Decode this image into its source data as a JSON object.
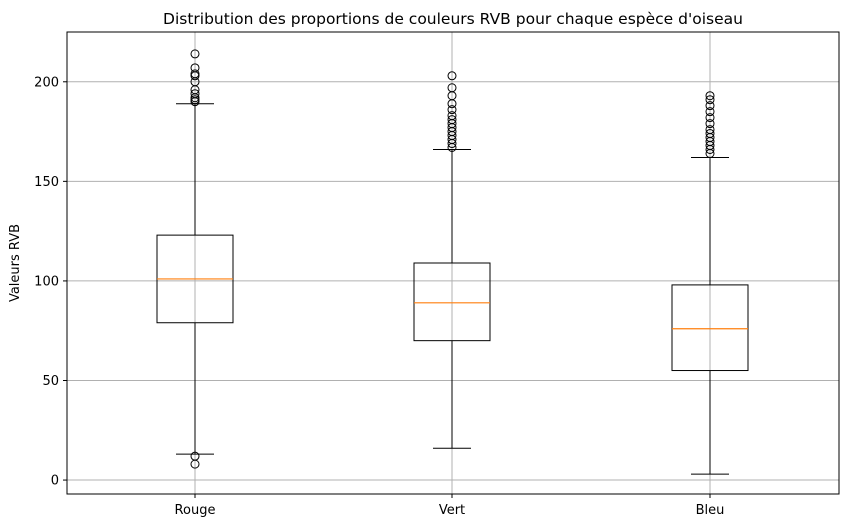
{
  "chart_data": {
    "type": "box",
    "title": "Distribution des proportions de couleurs RVB pour chaque espèce d'oiseau",
    "xlabel": "",
    "ylabel": "Valeurs RVB",
    "ylim": [
      -7,
      225
    ],
    "yticks": [
      0,
      50,
      100,
      150,
      200
    ],
    "grid": true,
    "categories": [
      "Rouge",
      "Vert",
      "Bleu"
    ],
    "boxes": [
      {
        "label": "Rouge",
        "whisker_low": 13,
        "q1": 79,
        "median": 101,
        "q3": 123,
        "whisker_high": 189,
        "outliers_low": [
          8,
          12
        ],
        "outliers_high": [
          190,
          191,
          192,
          194,
          196,
          200,
          203,
          204,
          207,
          214
        ]
      },
      {
        "label": "Vert",
        "whisker_low": 16,
        "q1": 70,
        "median": 89,
        "q3": 109,
        "whisker_high": 166,
        "outliers_low": [],
        "outliers_high": [
          167,
          169,
          171,
          173,
          175,
          177,
          179,
          181,
          183,
          186,
          189,
          193,
          197,
          203
        ]
      },
      {
        "label": "Bleu",
        "whisker_low": 3,
        "q1": 55,
        "median": 76,
        "q3": 98,
        "whisker_high": 162,
        "outliers_low": [],
        "outliers_high": [
          164,
          166,
          168,
          170,
          172,
          174,
          176,
          179,
          182,
          185,
          188,
          191,
          193
        ]
      }
    ],
    "colors": {
      "box": "#000000",
      "median": "#ff7f0e",
      "grid": "#b0b0b0"
    }
  }
}
